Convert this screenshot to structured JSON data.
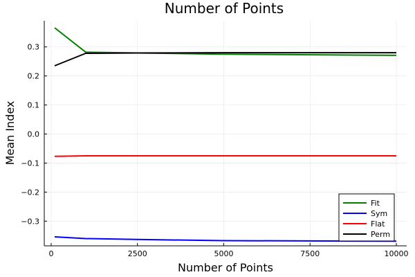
{
  "chart_data": {
    "type": "line",
    "title": "Number of Points",
    "xlabel": "Number of Points",
    "ylabel": "Mean Index",
    "xlim": [
      -200,
      10300
    ],
    "ylim": [
      -0.385,
      0.39
    ],
    "xticks": [
      0,
      2500,
      5000,
      7500,
      10000
    ],
    "xtick_labels": [
      "0",
      "2500",
      "5000",
      "7500",
      "10000"
    ],
    "yticks": [
      -0.3,
      -0.2,
      -0.1,
      0.0,
      0.1,
      0.2,
      0.3
    ],
    "ytick_labels": [
      "−0.3",
      "−0.2",
      "−0.1",
      "0.0",
      "0.1",
      "0.2",
      "0.3"
    ],
    "grid": true,
    "legend_position": "bottom-right",
    "series": [
      {
        "name": "Fit",
        "color": "#008000",
        "x": [
          100,
          1000,
          2500,
          5000,
          10000
        ],
        "y": [
          0.366,
          0.282,
          0.279,
          0.275,
          0.271
        ]
      },
      {
        "name": "Sym",
        "color": "#0000ff",
        "x": [
          100,
          1000,
          2500,
          5000,
          10000
        ],
        "y": [
          -0.354,
          -0.36,
          -0.363,
          -0.367,
          -0.369
        ]
      },
      {
        "name": "Flat",
        "color": "#ff0000",
        "x": [
          100,
          1000,
          2500,
          5000,
          10000
        ],
        "y": [
          -0.077,
          -0.075,
          -0.075,
          -0.075,
          -0.075
        ]
      },
      {
        "name": "Perm",
        "color": "#000000",
        "x": [
          100,
          1000,
          2500,
          5000,
          10000
        ],
        "y": [
          0.235,
          0.278,
          0.279,
          0.28,
          0.28
        ]
      }
    ]
  }
}
